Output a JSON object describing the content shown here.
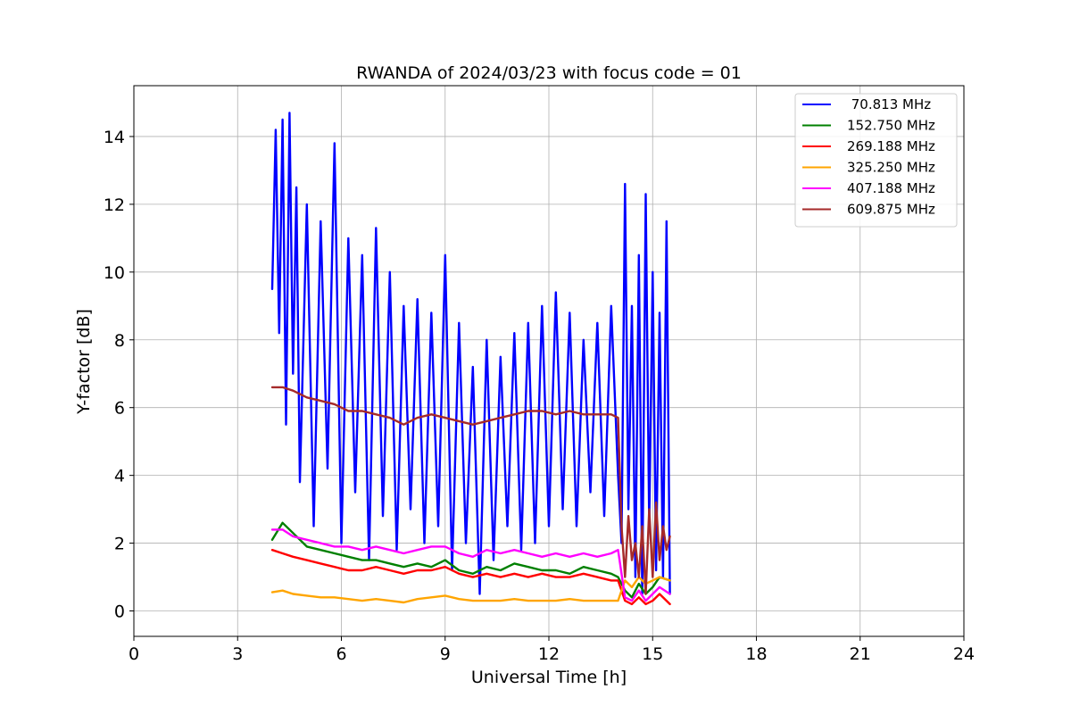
{
  "chart_data": {
    "type": "line",
    "title": "RWANDA of 2024/03/23 with focus code = 01",
    "xlabel": "Universal Time [h]",
    "ylabel": "Y-factor [dB]",
    "xlim": [
      0,
      24
    ],
    "ylim": [
      -0.75,
      15.5
    ],
    "xticks": [
      0,
      3,
      6,
      9,
      12,
      15,
      18,
      21,
      24
    ],
    "yticks": [
      0,
      2,
      4,
      6,
      8,
      10,
      12,
      14
    ],
    "grid": true,
    "legend_position": "top-right",
    "series": [
      {
        "name": " 70.813 MHz",
        "color": "#0000ff",
        "x": [
          4.0,
          4.1,
          4.2,
          4.3,
          4.4,
          4.5,
          4.6,
          4.7,
          4.8,
          5.0,
          5.2,
          5.4,
          5.6,
          5.8,
          6.0,
          6.2,
          6.4,
          6.6,
          6.8,
          7.0,
          7.2,
          7.4,
          7.6,
          7.8,
          8.0,
          8.2,
          8.4,
          8.6,
          8.8,
          9.0,
          9.2,
          9.4,
          9.6,
          9.8,
          10.0,
          10.2,
          10.4,
          10.6,
          10.8,
          11.0,
          11.2,
          11.4,
          11.6,
          11.8,
          12.0,
          12.2,
          12.4,
          12.6,
          12.8,
          13.0,
          13.2,
          13.4,
          13.6,
          13.8,
          14.0,
          14.1,
          14.2,
          14.3,
          14.4,
          14.5,
          14.6,
          14.7,
          14.8,
          14.9,
          15.0,
          15.1,
          15.2,
          15.3,
          15.4,
          15.5
        ],
        "y": [
          9.5,
          14.2,
          8.2,
          14.5,
          5.5,
          14.7,
          7.0,
          12.5,
          3.8,
          12.0,
          2.5,
          11.5,
          4.2,
          13.8,
          2.0,
          11.0,
          3.5,
          10.5,
          1.5,
          11.3,
          2.8,
          10.0,
          1.8,
          9.0,
          3.0,
          9.2,
          2.0,
          8.8,
          2.5,
          10.5,
          1.2,
          8.5,
          2.0,
          7.2,
          0.5,
          8.0,
          1.5,
          7.5,
          2.5,
          8.2,
          1.8,
          8.5,
          2.0,
          9.0,
          2.5,
          9.4,
          3.0,
          8.8,
          2.5,
          8.0,
          3.5,
          8.5,
          2.8,
          9.0,
          4.0,
          2.0,
          12.6,
          3.0,
          9.0,
          1.0,
          10.5,
          0.5,
          12.3,
          2.5,
          10.0,
          1.2,
          8.8,
          1.0,
          11.5,
          0.5
        ]
      },
      {
        "name": "152.750 MHz",
        "color": "#008000",
        "x": [
          4.0,
          4.3,
          4.6,
          5.0,
          5.4,
          5.8,
          6.2,
          6.6,
          7.0,
          7.4,
          7.8,
          8.2,
          8.6,
          9.0,
          9.4,
          9.8,
          10.2,
          10.6,
          11.0,
          11.4,
          11.8,
          12.2,
          12.6,
          13.0,
          13.4,
          13.8,
          14.0,
          14.2,
          14.4,
          14.6,
          14.8,
          15.0,
          15.2,
          15.5
        ],
        "y": [
          2.1,
          2.6,
          2.3,
          1.9,
          1.8,
          1.7,
          1.6,
          1.5,
          1.5,
          1.4,
          1.3,
          1.4,
          1.3,
          1.5,
          1.2,
          1.1,
          1.3,
          1.2,
          1.4,
          1.3,
          1.2,
          1.2,
          1.1,
          1.3,
          1.2,
          1.1,
          1.0,
          0.6,
          0.4,
          0.8,
          0.5,
          0.7,
          1.0,
          0.9
        ]
      },
      {
        "name": "269.188 MHz",
        "color": "#ff0000",
        "x": [
          4.0,
          4.3,
          4.6,
          5.0,
          5.4,
          5.8,
          6.2,
          6.6,
          7.0,
          7.4,
          7.8,
          8.2,
          8.6,
          9.0,
          9.4,
          9.8,
          10.2,
          10.6,
          11.0,
          11.4,
          11.8,
          12.2,
          12.6,
          13.0,
          13.4,
          13.8,
          14.0,
          14.2,
          14.4,
          14.6,
          14.8,
          15.0,
          15.2,
          15.5
        ],
        "y": [
          1.8,
          1.7,
          1.6,
          1.5,
          1.4,
          1.3,
          1.2,
          1.2,
          1.3,
          1.2,
          1.1,
          1.2,
          1.2,
          1.3,
          1.1,
          1.0,
          1.1,
          1.0,
          1.1,
          1.0,
          1.1,
          1.0,
          1.0,
          1.1,
          1.0,
          0.9,
          0.9,
          0.3,
          0.2,
          0.4,
          0.2,
          0.3,
          0.5,
          0.2
        ]
      },
      {
        "name": "325.250 MHz",
        "color": "#ffa500",
        "x": [
          4.0,
          4.3,
          4.6,
          5.0,
          5.4,
          5.8,
          6.2,
          6.6,
          7.0,
          7.4,
          7.8,
          8.2,
          8.6,
          9.0,
          9.4,
          9.8,
          10.2,
          10.6,
          11.0,
          11.4,
          11.8,
          12.2,
          12.6,
          13.0,
          13.4,
          13.8,
          14.0,
          14.2,
          14.4,
          14.6,
          14.8,
          15.0,
          15.2,
          15.5
        ],
        "y": [
          0.55,
          0.6,
          0.5,
          0.45,
          0.4,
          0.4,
          0.35,
          0.3,
          0.35,
          0.3,
          0.25,
          0.35,
          0.4,
          0.45,
          0.35,
          0.3,
          0.3,
          0.3,
          0.35,
          0.3,
          0.3,
          0.3,
          0.35,
          0.3,
          0.3,
          0.3,
          0.3,
          0.9,
          0.7,
          1.0,
          0.8,
          0.9,
          1.0,
          0.9
        ]
      },
      {
        "name": "407.188 MHz",
        "color": "#ff00ff",
        "x": [
          4.0,
          4.3,
          4.6,
          5.0,
          5.4,
          5.8,
          6.2,
          6.6,
          7.0,
          7.4,
          7.8,
          8.2,
          8.6,
          9.0,
          9.4,
          9.8,
          10.2,
          10.6,
          11.0,
          11.4,
          11.8,
          12.2,
          12.6,
          13.0,
          13.4,
          13.8,
          14.0,
          14.2,
          14.4,
          14.6,
          14.8,
          15.0,
          15.2,
          15.5
        ],
        "y": [
          2.4,
          2.4,
          2.2,
          2.1,
          2.0,
          1.9,
          1.9,
          1.8,
          1.9,
          1.8,
          1.7,
          1.8,
          1.9,
          1.9,
          1.7,
          1.6,
          1.8,
          1.7,
          1.8,
          1.7,
          1.6,
          1.7,
          1.6,
          1.7,
          1.6,
          1.7,
          1.8,
          0.4,
          0.3,
          0.6,
          0.3,
          0.5,
          0.7,
          0.5
        ]
      },
      {
        "name": "609.875 MHz",
        "color": "#a52a2a",
        "x": [
          4.0,
          4.3,
          4.6,
          5.0,
          5.4,
          5.8,
          6.2,
          6.6,
          7.0,
          7.4,
          7.8,
          8.2,
          8.6,
          9.0,
          9.4,
          9.8,
          10.2,
          10.6,
          11.0,
          11.4,
          11.8,
          12.2,
          12.6,
          13.0,
          13.4,
          13.8,
          14.0,
          14.1,
          14.2,
          14.3,
          14.4,
          14.5,
          14.6,
          14.7,
          14.8,
          14.9,
          15.0,
          15.1,
          15.2,
          15.3,
          15.4,
          15.5
        ],
        "y": [
          6.6,
          6.6,
          6.5,
          6.3,
          6.2,
          6.1,
          5.9,
          5.9,
          5.8,
          5.7,
          5.5,
          5.7,
          5.8,
          5.7,
          5.6,
          5.5,
          5.6,
          5.7,
          5.8,
          5.9,
          5.9,
          5.8,
          5.9,
          5.8,
          5.8,
          5.8,
          5.7,
          2.5,
          1.0,
          2.8,
          1.5,
          2.0,
          1.0,
          2.5,
          0.5,
          3.0,
          1.0,
          3.2,
          1.5,
          2.5,
          1.8,
          2.2
        ]
      }
    ]
  }
}
